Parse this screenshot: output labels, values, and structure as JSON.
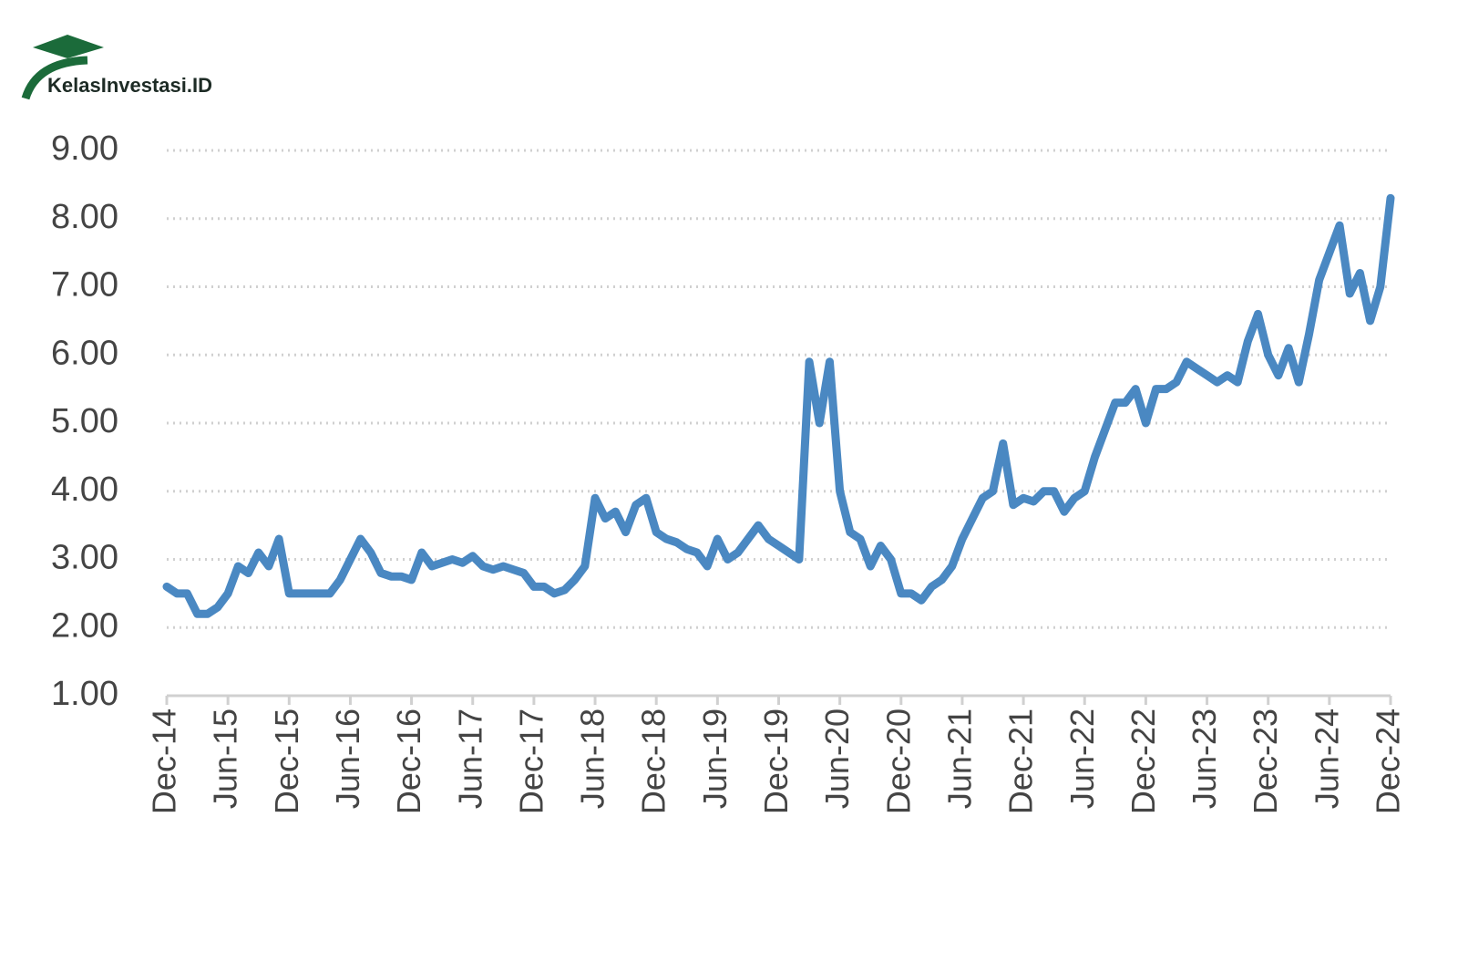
{
  "logo": "KelasInvestasi.ID",
  "chart_data": {
    "type": "line",
    "categories": [
      "Dec-14",
      null,
      null,
      null,
      null,
      null,
      "Jun-15",
      null,
      null,
      null,
      null,
      null,
      "Dec-15",
      null,
      null,
      null,
      null,
      null,
      "Jun-16",
      null,
      null,
      null,
      null,
      null,
      "Dec-16",
      null,
      null,
      null,
      null,
      null,
      "Jun-17",
      null,
      null,
      null,
      null,
      null,
      "Dec-17",
      null,
      null,
      null,
      null,
      null,
      "Jun-18",
      null,
      null,
      null,
      null,
      null,
      "Dec-18",
      null,
      null,
      null,
      null,
      null,
      "Jun-19",
      null,
      null,
      null,
      null,
      null,
      "Dec-19",
      null,
      null,
      null,
      null,
      null,
      "Jun-20",
      null,
      null,
      null,
      null,
      null,
      "Dec-20",
      null,
      null,
      null,
      null,
      null,
      "Jun-21",
      null,
      null,
      null,
      null,
      null,
      "Dec-21",
      null,
      null,
      null,
      null,
      null,
      "Jun-22",
      null,
      null,
      null,
      null,
      null,
      "Dec-22",
      null,
      null,
      null,
      null,
      null,
      "Jun-23",
      null,
      null,
      null,
      null,
      null,
      "Dec-23",
      null,
      null,
      null,
      null,
      null,
      "Jun-24",
      null,
      null,
      null,
      null,
      null,
      "Dec-24"
    ],
    "values": [
      2.6,
      2.5,
      2.5,
      2.2,
      2.2,
      2.3,
      2.5,
      2.9,
      2.8,
      3.1,
      2.9,
      3.3,
      2.5,
      2.5,
      2.5,
      2.5,
      2.5,
      2.7,
      3.0,
      3.3,
      3.1,
      2.8,
      2.75,
      2.75,
      2.7,
      3.1,
      2.9,
      2.95,
      3.0,
      2.95,
      3.05,
      2.9,
      2.85,
      2.9,
      2.85,
      2.8,
      2.6,
      2.6,
      2.5,
      2.55,
      2.7,
      2.9,
      3.9,
      3.6,
      3.7,
      3.4,
      3.8,
      3.9,
      3.4,
      3.3,
      3.25,
      3.15,
      3.1,
      2.9,
      3.3,
      3.0,
      3.1,
      3.3,
      3.5,
      3.3,
      3.2,
      3.1,
      3.0,
      5.9,
      5.0,
      5.9,
      4.0,
      3.4,
      3.3,
      2.9,
      3.2,
      3.0,
      2.5,
      2.5,
      2.4,
      2.6,
      2.7,
      2.9,
      3.3,
      3.6,
      3.9,
      4.0,
      4.7,
      3.8,
      3.9,
      3.85,
      4.0,
      4.0,
      3.7,
      3.9,
      4.0,
      4.5,
      4.9,
      5.3,
      5.3,
      5.5,
      5.0,
      5.5,
      5.5,
      5.6,
      5.9,
      5.8,
      5.7,
      5.6,
      5.7,
      5.6,
      6.2,
      6.6,
      6.0,
      5.7,
      6.1,
      5.6,
      6.3,
      7.1,
      7.5,
      7.9,
      6.9,
      7.2,
      6.5,
      7.0,
      8.3
    ],
    "color": "#4a88c2",
    "ylim": [
      1,
      9
    ],
    "yticks": [
      {
        "value": 1,
        "label": "1.00"
      },
      {
        "value": 2,
        "label": "2.00"
      },
      {
        "value": 3,
        "label": "3.00"
      },
      {
        "value": 4,
        "label": "4.00"
      },
      {
        "value": 5,
        "label": "5.00"
      },
      {
        "value": 6,
        "label": "6.00"
      },
      {
        "value": 7,
        "label": "7.00"
      },
      {
        "value": 8,
        "label": "8.00"
      },
      {
        "value": 9,
        "label": "9.00"
      }
    ],
    "grid": true
  }
}
